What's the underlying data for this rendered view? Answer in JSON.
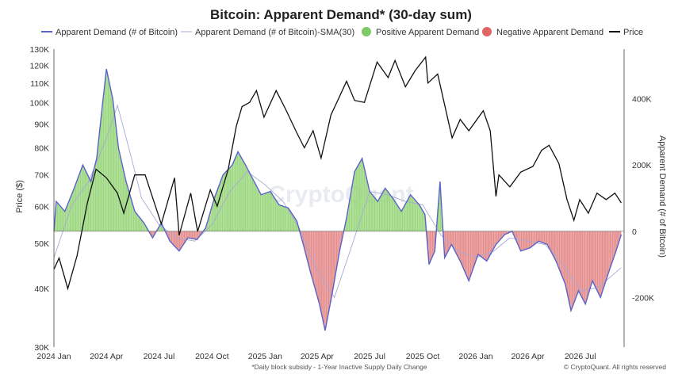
{
  "chart_data": {
    "type": "bar",
    "title": "Bitcoin: Apparent Demand* (30-day sum)",
    "footnote": "*Daily block subsidy - 1-Year Inactive Supply Daily Change",
    "copyright": "© CryptoQuant. All rights reserved",
    "watermark": "CryptoQuant",
    "ylabel_left": "Price ($)",
    "ylabel_right": "Apparent Demand (# of Bitcoin)",
    "left_axis": {
      "scale": "log",
      "range": [
        30000,
        130000
      ],
      "ticks": [
        {
          "value": 30000,
          "label": "30K"
        },
        {
          "value": 40000,
          "label": "40K"
        },
        {
          "value": 50000,
          "label": "50K"
        },
        {
          "value": 60000,
          "label": "60K"
        },
        {
          "value": 70000,
          "label": "70K"
        },
        {
          "value": 80000,
          "label": "80K"
        },
        {
          "value": 90000,
          "label": "90K"
        },
        {
          "value": 100000,
          "label": "100K"
        },
        {
          "value": 110000,
          "label": "110K"
        },
        {
          "value": 120000,
          "label": "120K"
        },
        {
          "value": 130000,
          "label": "130K"
        }
      ]
    },
    "right_axis": {
      "scale": "linear",
      "range": [
        -350000,
        550000
      ],
      "ticks": [
        {
          "value": 400000,
          "label": "400K"
        },
        {
          "value": 200000,
          "label": "200K"
        },
        {
          "value": 0,
          "label": "0"
        },
        {
          "value": -200000,
          "label": "-200K"
        }
      ]
    },
    "x_axis": {
      "range": [
        "2024-01-01",
        "2026-09-15"
      ],
      "ticks": [
        {
          "date": "2024-01-01",
          "label": "2024 Jan"
        },
        {
          "date": "2024-04-01",
          "label": "2024 Apr"
        },
        {
          "date": "2024-07-01",
          "label": "2024 Jul"
        },
        {
          "date": "2024-10-01",
          "label": "2024 Oct"
        },
        {
          "date": "2025-01-01",
          "label": "2025 Jan"
        },
        {
          "date": "2025-04-01",
          "label": "2025 Apr"
        },
        {
          "date": "2025-07-01",
          "label": "2025 Jul"
        },
        {
          "date": "2025-10-01",
          "label": "2025 Oct"
        },
        {
          "date": "2026-01-01",
          "label": "2026 Jan"
        },
        {
          "date": "2026-04-01",
          "label": "2026 Apr"
        },
        {
          "date": "2026-07-01",
          "label": "2026 Jul"
        }
      ]
    },
    "legend": [
      {
        "label": "Apparent Demand (# of Bitcoin)",
        "kind": "line",
        "color": "#5b63c9"
      },
      {
        "label": "Apparent Demand (# of Bitcoin)-SMA(30)",
        "kind": "thin-line",
        "color": "#a9a9d4"
      },
      {
        "label": "Positive Apparent Demand",
        "kind": "dot",
        "color": "#7ccc63"
      },
      {
        "label": "Negative Apparent Demand",
        "kind": "dot",
        "color": "#e06666"
      },
      {
        "label": "Price",
        "kind": "line",
        "color": "#111111"
      }
    ],
    "colors": {
      "positive": "#9bd77f",
      "negative": "#e58c8c",
      "demand_line": "#5b63c9",
      "sma": "#a9a9d4",
      "price": "#111111"
    },
    "price_series": [
      {
        "date": "2024-01-01",
        "value": 44000
      },
      {
        "date": "2024-01-10",
        "value": 46500
      },
      {
        "date": "2024-01-25",
        "value": 40000
      },
      {
        "date": "2024-02-10",
        "value": 47000
      },
      {
        "date": "2024-02-28",
        "value": 61000
      },
      {
        "date": "2024-03-14",
        "value": 72000
      },
      {
        "date": "2024-04-01",
        "value": 69000
      },
      {
        "date": "2024-04-20",
        "value": 64000
      },
      {
        "date": "2024-05-01",
        "value": 58000
      },
      {
        "date": "2024-05-20",
        "value": 70000
      },
      {
        "date": "2024-06-07",
        "value": 70000
      },
      {
        "date": "2024-07-05",
        "value": 55000
      },
      {
        "date": "2024-07-28",
        "value": 69000
      },
      {
        "date": "2024-08-05",
        "value": 52000
      },
      {
        "date": "2024-08-25",
        "value": 64000
      },
      {
        "date": "2024-09-06",
        "value": 53000
      },
      {
        "date": "2024-09-28",
        "value": 65000
      },
      {
        "date": "2024-10-10",
        "value": 60000
      },
      {
        "date": "2024-10-29",
        "value": 72000
      },
      {
        "date": "2024-11-12",
        "value": 89000
      },
      {
        "date": "2024-11-22",
        "value": 98000
      },
      {
        "date": "2024-12-05",
        "value": 100000
      },
      {
        "date": "2024-12-17",
        "value": 106000
      },
      {
        "date": "2024-12-30",
        "value": 93000
      },
      {
        "date": "2025-01-20",
        "value": 106000
      },
      {
        "date": "2025-02-05",
        "value": 97000
      },
      {
        "date": "2025-02-25",
        "value": 86000
      },
      {
        "date": "2025-03-10",
        "value": 80000
      },
      {
        "date": "2025-03-25",
        "value": 87000
      },
      {
        "date": "2025-04-08",
        "value": 76000
      },
      {
        "date": "2025-04-25",
        "value": 94000
      },
      {
        "date": "2025-05-10",
        "value": 103000
      },
      {
        "date": "2025-05-22",
        "value": 111000
      },
      {
        "date": "2025-06-05",
        "value": 101000
      },
      {
        "date": "2025-06-22",
        "value": 100000
      },
      {
        "date": "2025-07-14",
        "value": 122000
      },
      {
        "date": "2025-08-02",
        "value": 113000
      },
      {
        "date": "2025-08-14",
        "value": 123000
      },
      {
        "date": "2025-09-01",
        "value": 108000
      },
      {
        "date": "2025-09-18",
        "value": 117000
      },
      {
        "date": "2025-10-06",
        "value": 125000
      },
      {
        "date": "2025-10-10",
        "value": 110000
      },
      {
        "date": "2025-10-27",
        "value": 115000
      },
      {
        "date": "2025-11-21",
        "value": 84000
      },
      {
        "date": "2025-12-05",
        "value": 92000
      },
      {
        "date": "2025-12-20",
        "value": 87000
      },
      {
        "date": "2026-01-14",
        "value": 96000
      },
      {
        "date": "2026-01-26",
        "value": 87000
      },
      {
        "date": "2026-02-05",
        "value": 63000
      },
      {
        "date": "2026-02-10",
        "value": 70000
      },
      {
        "date": "2026-03-01",
        "value": 66000
      },
      {
        "date": "2026-03-20",
        "value": 71000
      },
      {
        "date": "2026-04-10",
        "value": 73000
      },
      {
        "date": "2026-04-25",
        "value": 79000
      },
      {
        "date": "2026-05-08",
        "value": 81000
      },
      {
        "date": "2026-05-25",
        "value": 74000
      },
      {
        "date": "2026-06-08",
        "value": 62000
      },
      {
        "date": "2026-06-20",
        "value": 56000
      },
      {
        "date": "2026-06-30",
        "value": 62000
      },
      {
        "date": "2026-07-15",
        "value": 58000
      },
      {
        "date": "2026-07-30",
        "value": 64000
      },
      {
        "date": "2026-08-15",
        "value": 62000
      },
      {
        "date": "2026-08-30",
        "value": 64000
      },
      {
        "date": "2026-09-10",
        "value": 61000
      }
    ],
    "demand_series": [
      {
        "date": "2024-01-01",
        "value": 0
      },
      {
        "date": "2024-01-05",
        "value": 90000
      },
      {
        "date": "2024-01-20",
        "value": 60000
      },
      {
        "date": "2024-02-05",
        "value": 130000
      },
      {
        "date": "2024-02-20",
        "value": 200000
      },
      {
        "date": "2024-03-05",
        "value": 150000
      },
      {
        "date": "2024-03-15",
        "value": 220000
      },
      {
        "date": "2024-03-25",
        "value": 380000
      },
      {
        "date": "2024-04-01",
        "value": 490000
      },
      {
        "date": "2024-04-12",
        "value": 400000
      },
      {
        "date": "2024-04-22",
        "value": 250000
      },
      {
        "date": "2024-05-05",
        "value": 150000
      },
      {
        "date": "2024-05-20",
        "value": 60000
      },
      {
        "date": "2024-06-05",
        "value": 25000
      },
      {
        "date": "2024-06-20",
        "value": -20000
      },
      {
        "date": "2024-07-05",
        "value": 25000
      },
      {
        "date": "2024-07-20",
        "value": -30000
      },
      {
        "date": "2024-08-05",
        "value": -60000
      },
      {
        "date": "2024-08-20",
        "value": -20000
      },
      {
        "date": "2024-09-05",
        "value": -25000
      },
      {
        "date": "2024-09-20",
        "value": 10000
      },
      {
        "date": "2024-10-05",
        "value": 100000
      },
      {
        "date": "2024-10-20",
        "value": 170000
      },
      {
        "date": "2024-11-05",
        "value": 200000
      },
      {
        "date": "2024-11-15",
        "value": 240000
      },
      {
        "date": "2024-11-28",
        "value": 200000
      },
      {
        "date": "2024-12-10",
        "value": 160000
      },
      {
        "date": "2024-12-25",
        "value": 110000
      },
      {
        "date": "2025-01-10",
        "value": 120000
      },
      {
        "date": "2025-01-25",
        "value": 80000
      },
      {
        "date": "2025-02-10",
        "value": 70000
      },
      {
        "date": "2025-02-25",
        "value": 30000
      },
      {
        "date": "2025-03-08",
        "value": -40000
      },
      {
        "date": "2025-03-20",
        "value": -120000
      },
      {
        "date": "2025-04-05",
        "value": -220000
      },
      {
        "date": "2025-04-15",
        "value": -300000
      },
      {
        "date": "2025-04-28",
        "value": -180000
      },
      {
        "date": "2025-05-10",
        "value": -60000
      },
      {
        "date": "2025-05-22",
        "value": 40000
      },
      {
        "date": "2025-06-05",
        "value": 180000
      },
      {
        "date": "2025-06-18",
        "value": 220000
      },
      {
        "date": "2025-07-01",
        "value": 120000
      },
      {
        "date": "2025-07-15",
        "value": 90000
      },
      {
        "date": "2025-07-28",
        "value": 130000
      },
      {
        "date": "2025-08-10",
        "value": 100000
      },
      {
        "date": "2025-08-25",
        "value": 60000
      },
      {
        "date": "2025-09-10",
        "value": 110000
      },
      {
        "date": "2025-09-25",
        "value": 80000
      },
      {
        "date": "2025-10-05",
        "value": 50000
      },
      {
        "date": "2025-10-12",
        "value": -100000
      },
      {
        "date": "2025-10-22",
        "value": -60000
      },
      {
        "date": "2025-10-31",
        "value": 150000
      },
      {
        "date": "2025-11-08",
        "value": -80000
      },
      {
        "date": "2025-11-20",
        "value": -40000
      },
      {
        "date": "2025-12-05",
        "value": -90000
      },
      {
        "date": "2025-12-20",
        "value": -150000
      },
      {
        "date": "2026-01-05",
        "value": -70000
      },
      {
        "date": "2026-01-20",
        "value": -90000
      },
      {
        "date": "2026-02-05",
        "value": -40000
      },
      {
        "date": "2026-02-20",
        "value": -10000
      },
      {
        "date": "2026-03-05",
        "value": 0
      },
      {
        "date": "2026-03-20",
        "value": -60000
      },
      {
        "date": "2026-04-05",
        "value": -50000
      },
      {
        "date": "2026-04-20",
        "value": -30000
      },
      {
        "date": "2026-05-05",
        "value": -40000
      },
      {
        "date": "2026-05-20",
        "value": -90000
      },
      {
        "date": "2026-06-05",
        "value": -160000
      },
      {
        "date": "2026-06-15",
        "value": -240000
      },
      {
        "date": "2026-06-28",
        "value": -180000
      },
      {
        "date": "2026-07-10",
        "value": -220000
      },
      {
        "date": "2026-07-22",
        "value": -150000
      },
      {
        "date": "2026-08-05",
        "value": -200000
      },
      {
        "date": "2026-08-20",
        "value": -120000
      },
      {
        "date": "2026-09-01",
        "value": -60000
      },
      {
        "date": "2026-09-10",
        "value": -10000
      }
    ],
    "sma_series": [
      {
        "date": "2024-01-01",
        "value": -80000
      },
      {
        "date": "2024-02-01",
        "value": 80000
      },
      {
        "date": "2024-03-01",
        "value": 150000
      },
      {
        "date": "2024-04-01",
        "value": 280000
      },
      {
        "date": "2024-04-20",
        "value": 380000
      },
      {
        "date": "2024-05-10",
        "value": 250000
      },
      {
        "date": "2024-06-01",
        "value": 100000
      },
      {
        "date": "2024-07-01",
        "value": 20000
      },
      {
        "date": "2024-08-01",
        "value": -20000
      },
      {
        "date": "2024-09-01",
        "value": -30000
      },
      {
        "date": "2024-10-01",
        "value": 20000
      },
      {
        "date": "2024-11-01",
        "value": 120000
      },
      {
        "date": "2024-12-01",
        "value": 180000
      },
      {
        "date": "2025-01-01",
        "value": 140000
      },
      {
        "date": "2025-02-01",
        "value": 90000
      },
      {
        "date": "2025-03-01",
        "value": 10000
      },
      {
        "date": "2025-04-01",
        "value": -120000
      },
      {
        "date": "2025-05-01",
        "value": -200000
      },
      {
        "date": "2025-06-01",
        "value": -40000
      },
      {
        "date": "2025-07-01",
        "value": 120000
      },
      {
        "date": "2025-08-01",
        "value": 110000
      },
      {
        "date": "2025-09-01",
        "value": 90000
      },
      {
        "date": "2025-10-01",
        "value": 80000
      },
      {
        "date": "2025-11-01",
        "value": -10000
      },
      {
        "date": "2025-12-01",
        "value": -60000
      },
      {
        "date": "2026-01-01",
        "value": -80000
      },
      {
        "date": "2026-02-01",
        "value": -60000
      },
      {
        "date": "2026-03-01",
        "value": -20000
      },
      {
        "date": "2026-04-01",
        "value": -30000
      },
      {
        "date": "2026-05-01",
        "value": -40000
      },
      {
        "date": "2026-06-01",
        "value": -100000
      },
      {
        "date": "2026-07-01",
        "value": -180000
      },
      {
        "date": "2026-08-01",
        "value": -170000
      },
      {
        "date": "2026-09-10",
        "value": -110000
      }
    ]
  }
}
